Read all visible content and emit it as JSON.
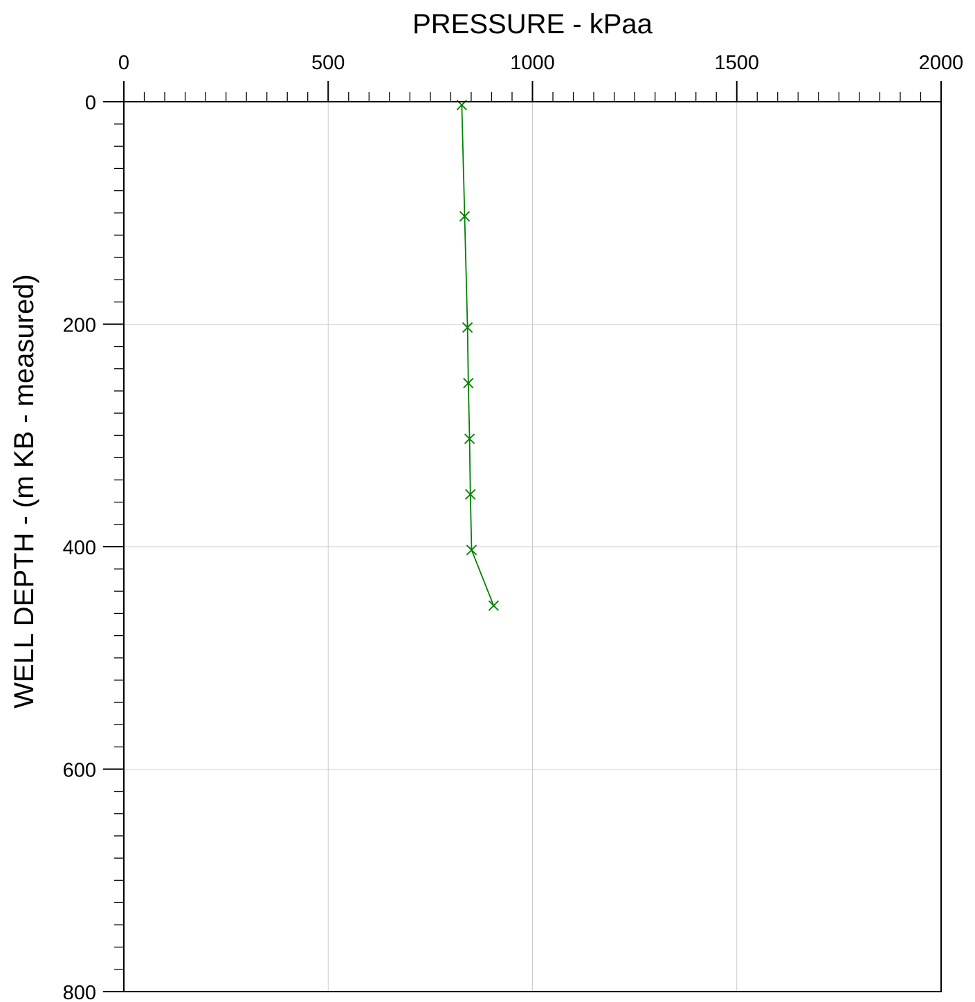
{
  "chart_data": {
    "type": "line",
    "title": "",
    "xlabel": "PRESSURE - kPaa",
    "ylabel": "WELL DEPTH - (m KB - measured)",
    "xlim": [
      0,
      2000
    ],
    "ylim": [
      0,
      800
    ],
    "y_inverted": true,
    "x_axis_position": "top",
    "grid": true,
    "x_ticks": [
      "0",
      "500",
      "1000",
      "1500",
      "2000"
    ],
    "y_ticks": [
      "0",
      "200",
      "400",
      "600",
      "800"
    ],
    "series_color": "#008000",
    "marker": "x",
    "series": [
      {
        "x": [
          827,
          834,
          841,
          843,
          846,
          848,
          851,
          905
        ],
        "y": [
          3,
          103,
          203,
          253,
          303,
          353,
          403,
          453
        ]
      }
    ]
  }
}
